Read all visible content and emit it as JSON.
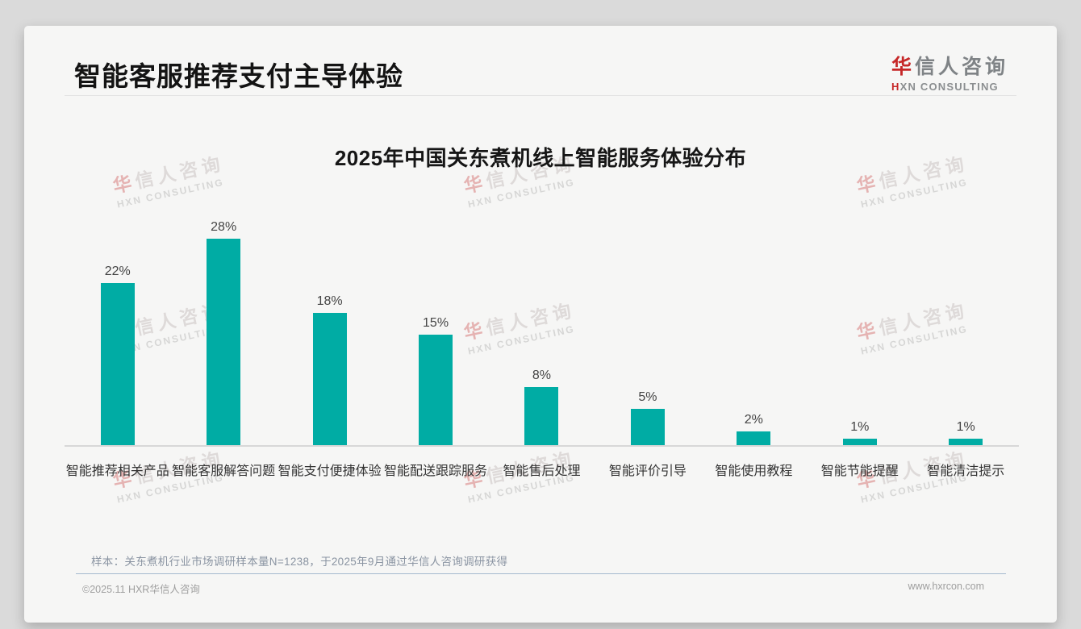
{
  "header": {
    "title": "智能客服推荐支付主导体验"
  },
  "logo": {
    "cn_first": "华",
    "cn_rest": "信人咨询",
    "en_first": "H",
    "en_rest": "XN CONSULTING"
  },
  "chart_data": {
    "type": "bar",
    "title": "2025年中国关东煮机线上智能服务体验分布",
    "categories": [
      "智能推荐相关产品",
      "智能客服解答问题",
      "智能支付便捷体验",
      "智能配送跟踪服务",
      "智能售后处理",
      "智能评价引导",
      "智能使用教程",
      "智能节能提醒",
      "智能清洁提示"
    ],
    "values": [
      22,
      28,
      18,
      15,
      8,
      5,
      2,
      1,
      1
    ],
    "unit": "%",
    "bar_color": "#00ACA4",
    "value_labels": true,
    "ylim": [
      0,
      30
    ],
    "grid": false,
    "legend": "none",
    "xlabel": "",
    "ylabel": ""
  },
  "sample_note": "样本：关东煮机行业市场调研样本量N=1238，于2025年9月通过华信人咨询调研获得",
  "footer": {
    "copyright": "©2025.11 HXR华信人咨询",
    "website": "www.hxrcon.com"
  },
  "watermark": {
    "line1_first": "华",
    "line1_rest": "信人咨询",
    "line2": "HXN CONSULTING"
  },
  "colors": {
    "bar": "#00ACA4",
    "accent_red": "#C62828",
    "title_text": "#141414",
    "note_text": "#8A94A2",
    "footer_divider": "#A5BACE"
  }
}
